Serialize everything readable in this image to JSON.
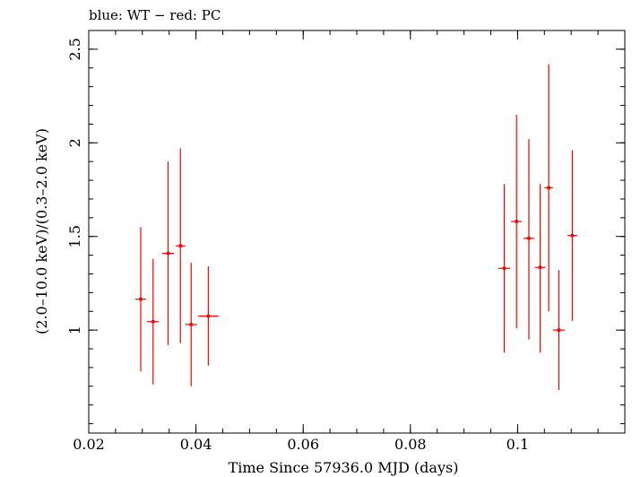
{
  "chart_data": {
    "type": "scatter",
    "title": "blue: WT − red: PC",
    "xlabel": "Time Since 57936.0 MJD (days)",
    "ylabel": "(2.0–10.0 keV)/(0.3–2.0 keV)",
    "xlim": [
      0.02,
      0.12
    ],
    "ylim": [
      0.45,
      2.6
    ],
    "x_ticks": [
      {
        "value": 0.02,
        "label": "0.02"
      },
      {
        "value": 0.04,
        "label": "0.04"
      },
      {
        "value": 0.06,
        "label": "0.06"
      },
      {
        "value": 0.08,
        "label": "0.08"
      },
      {
        "value": 0.1,
        "label": "0.1"
      }
    ],
    "y_ticks": [
      {
        "value": 1.0,
        "label": "1"
      },
      {
        "value": 1.5,
        "label": "1.5"
      },
      {
        "value": 2.0,
        "label": "2"
      },
      {
        "value": 2.5,
        "label": "2.5"
      }
    ],
    "x_minor_step": 0.005,
    "y_minor_step": 0.1,
    "grid": false,
    "series": [
      {
        "color": "#ff0000",
        "points": [
          {
            "x": 0.0297,
            "xerr": 0.001,
            "y": 1.165,
            "ylo": 0.78,
            "yhi": 1.55
          },
          {
            "x": 0.032,
            "xerr": 0.0011,
            "y": 1.045,
            "ylo": 0.71,
            "yhi": 1.38
          },
          {
            "x": 0.0348,
            "xerr": 0.0011,
            "y": 1.41,
            "ylo": 0.92,
            "yhi": 1.9
          },
          {
            "x": 0.0371,
            "xerr": 0.0009,
            "y": 1.45,
            "ylo": 0.93,
            "yhi": 1.97
          },
          {
            "x": 0.0391,
            "xerr": 0.0011,
            "y": 1.03,
            "ylo": 0.7,
            "yhi": 1.36
          },
          {
            "x": 0.0423,
            "xerr": 0.0019,
            "y": 1.075,
            "ylo": 0.81,
            "yhi": 1.34
          },
          {
            "x": 0.0975,
            "xerr": 0.0011,
            "y": 1.33,
            "ylo": 0.88,
            "yhi": 1.78
          },
          {
            "x": 0.0998,
            "xerr": 0.001,
            "y": 1.58,
            "ylo": 1.01,
            "yhi": 2.15
          },
          {
            "x": 0.1021,
            "xerr": 0.001,
            "y": 1.49,
            "ylo": 0.95,
            "yhi": 2.02
          },
          {
            "x": 0.1042,
            "xerr": 0.001,
            "y": 1.335,
            "ylo": 0.88,
            "yhi": 1.78
          },
          {
            "x": 0.1058,
            "xerr": 0.0008,
            "y": 1.76,
            "ylo": 1.1,
            "yhi": 2.42
          },
          {
            "x": 0.1077,
            "xerr": 0.0011,
            "y": 1.0,
            "ylo": 0.68,
            "yhi": 1.32
          },
          {
            "x": 0.1102,
            "xerr": 0.0009,
            "y": 1.505,
            "ylo": 1.05,
            "yhi": 1.96
          }
        ]
      }
    ]
  }
}
